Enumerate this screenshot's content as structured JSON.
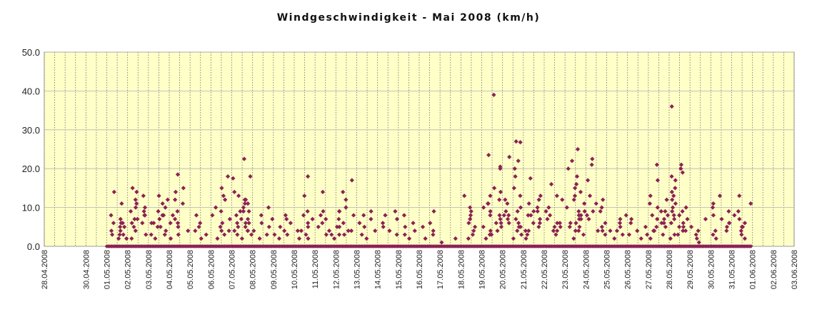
{
  "chart_data": {
    "type": "scatter",
    "title": "Windgeschwindigkeit - Mai 2008 (km/h)",
    "xlabel": "",
    "ylabel": "",
    "ylim": [
      0,
      50
    ],
    "y_ticks": [
      "0.0",
      "10.0",
      "20.0",
      "30.0",
      "40.0",
      "50.0"
    ],
    "x_start_date": "2008-04-28",
    "x_tick_labels": [
      "28.04.2008",
      "30.04.2008",
      "01.05.2008",
      "02.05.2008",
      "03.05.2008",
      "04.05.2008",
      "05.05.2008",
      "06.05.2008",
      "07.05.2008",
      "08.05.2008",
      "09.05.2008",
      "10.05.2008",
      "11.05.2008",
      "12.05.2008",
      "13.05.2008",
      "14.05.2008",
      "15.05.2008",
      "16.05.2008",
      "17.05.2008",
      "18.05.2008",
      "19.05.2008",
      "20.05.2008",
      "21.05.2008",
      "22.05.2008",
      "23.05.2008",
      "24.05.2008",
      "25.05.2008",
      "26.05.2008",
      "27.05.2008",
      "28.05.2008",
      "29.05.2008",
      "30.05.2008",
      "31.05.2008",
      "01.06.2008",
      "02.06.2008",
      "03.06.2008"
    ],
    "plot_background": "#ffffc8",
    "marker_color": "#8b2252",
    "grid": true,
    "series": [
      {
        "values_by_day": [
          {
            "date": "01.05.2008",
            "points": [
              5,
              6,
              3,
              2,
              7,
              4,
              8,
              5,
              6,
              3,
              11,
              14,
              6,
              4,
              2,
              3
            ]
          },
          {
            "date": "02.05.2008",
            "points": [
              15,
              13,
              10,
              8,
              9,
              7,
              6,
              12,
              5,
              4,
              3,
              8,
              11,
              14,
              9,
              6,
              2,
              7,
              10
            ]
          },
          {
            "date": "03.05.2008",
            "points": [
              13,
              12,
              9,
              8,
              6,
              5,
              4,
              3,
              2,
              7,
              10,
              11,
              6,
              5,
              3,
              8
            ]
          },
          {
            "date": "04.05.2008",
            "points": [
              18.5,
              15,
              12,
              9,
              6,
              5,
              4,
              3,
              2,
              7,
              8,
              11,
              6,
              14
            ]
          },
          {
            "date": "05.05.2008",
            "points": [
              8,
              5,
              4,
              3,
              6,
              2
            ]
          },
          {
            "date": "06.05.2008",
            "points": [
              18,
              13,
              12,
              8,
              6,
              5,
              4,
              3,
              2,
              9,
              7,
              10,
              15,
              4
            ]
          },
          {
            "date": "07.05.2008",
            "points": [
              22.5,
              17.5,
              12,
              11,
              9,
              7,
              6,
              5,
              4,
              3,
              2,
              8,
              10,
              5,
              6,
              9,
              12,
              14,
              18,
              4,
              3,
              7,
              11,
              13,
              9,
              6,
              4
            ]
          },
          {
            "date": "08.05.2008",
            "points": [
              8,
              6,
              4,
              2,
              3,
              5,
              10,
              7
            ]
          },
          {
            "date": "09.05.2008",
            "points": [
              8,
              6,
              5,
              3,
              2,
              4,
              7,
              3
            ]
          },
          {
            "date": "10.05.2008",
            "points": [
              18,
              13,
              9,
              7,
              5,
              4,
              3,
              2,
              6,
              8,
              4,
              2
            ]
          },
          {
            "date": "11.05.2008",
            "points": [
              14,
              9,
              8,
              6,
              5,
              3,
              2,
              4,
              7,
              3
            ]
          },
          {
            "date": "12.05.2008",
            "points": [
              17,
              14,
              12,
              10,
              9,
              8,
              6,
              5,
              4,
              3,
              7,
              5,
              9,
              3,
              4
            ]
          },
          {
            "date": "13.05.2008",
            "points": [
              9,
              7,
              5,
              3,
              2,
              4,
              8,
              6
            ]
          },
          {
            "date": "14.05.2008",
            "points": [
              9,
              8,
              7,
              6,
              5,
              4,
              3
            ]
          },
          {
            "date": "15.05.2008",
            "points": [
              8,
              6,
              5,
              4,
              3,
              2
            ]
          },
          {
            "date": "16.05.2008",
            "points": [
              9,
              6,
              4,
              3,
              2,
              5
            ]
          },
          {
            "date": "17.05.2008",
            "points": [
              2,
              1
            ]
          },
          {
            "date": "18.05.2008",
            "points": [
              13,
              9,
              8,
              6,
              5,
              4,
              3,
              2,
              7,
              10
            ]
          },
          {
            "date": "19.05.2008",
            "points": [
              39,
              23.5,
              20.5,
              20,
              15,
              13,
              12,
              11,
              10,
              9,
              8,
              7,
              6,
              5,
              4,
              3,
              2,
              8,
              11,
              14,
              6,
              5,
              4,
              3
            ]
          },
          {
            "date": "20.05.2008",
            "points": [
              27,
              26.8,
              23,
              22,
              20,
              18,
              15,
              12,
              10,
              9,
              8,
              7,
              6,
              5,
              4,
              3,
              2,
              13,
              11,
              9,
              7,
              5,
              6,
              8
            ]
          },
          {
            "date": "21.05.2008",
            "points": [
              17.5,
              13,
              12,
              10,
              9,
              8,
              7,
              6,
              5,
              4,
              3,
              2,
              11,
              8,
              6,
              9,
              4
            ]
          },
          {
            "date": "22.05.2008",
            "points": [
              16,
              13,
              12,
              10,
              9,
              8,
              6,
              5,
              4,
              3,
              7,
              5,
              4,
              6
            ]
          },
          {
            "date": "23.05.2008",
            "points": [
              25,
              22,
              20,
              18,
              16,
              14,
              12,
              10,
              9,
              8,
              7,
              6,
              5,
              4,
              3,
              2,
              13,
              11,
              9,
              15,
              8,
              6,
              4,
              7,
              5
            ]
          },
          {
            "date": "24.05.2008",
            "points": [
              22.5,
              21,
              17,
              13,
              12,
              11,
              9,
              8,
              7,
              6,
              5,
              4,
              3,
              10,
              9,
              4
            ]
          },
          {
            "date": "25.05.2008",
            "points": [
              8,
              6,
              5,
              4,
              3,
              2,
              7,
              4
            ]
          },
          {
            "date": "26.05.2008",
            "points": [
              5,
              4,
              3,
              2,
              6,
              7,
              3
            ]
          },
          {
            "date": "27.05.2008",
            "points": [
              21,
              17,
              13,
              12,
              10,
              9,
              8,
              7,
              6,
              5,
              4,
              3,
              2,
              11,
              9,
              7,
              5,
              6,
              4,
              8
            ]
          },
          {
            "date": "28.05.2008",
            "points": [
              36,
              21,
              20,
              19,
              18,
              17,
              15,
              14,
              13,
              12,
              11,
              10,
              9,
              8,
              7,
              6,
              5,
              4,
              3,
              2,
              10,
              8,
              6,
              4,
              9,
              7,
              5,
              3
            ]
          },
          {
            "date": "29.05.2008",
            "points": [
              7,
              5,
              3,
              2,
              4,
              1
            ]
          },
          {
            "date": "30.05.2008",
            "points": [
              13,
              11,
              10,
              9,
              8,
              7,
              6,
              5,
              4,
              3,
              2,
              6,
              4
            ]
          },
          {
            "date": "31.05.2008",
            "points": [
              13,
              11,
              9,
              8,
              7,
              6,
              5,
              4,
              3,
              2,
              5
            ]
          }
        ]
      }
    ]
  }
}
